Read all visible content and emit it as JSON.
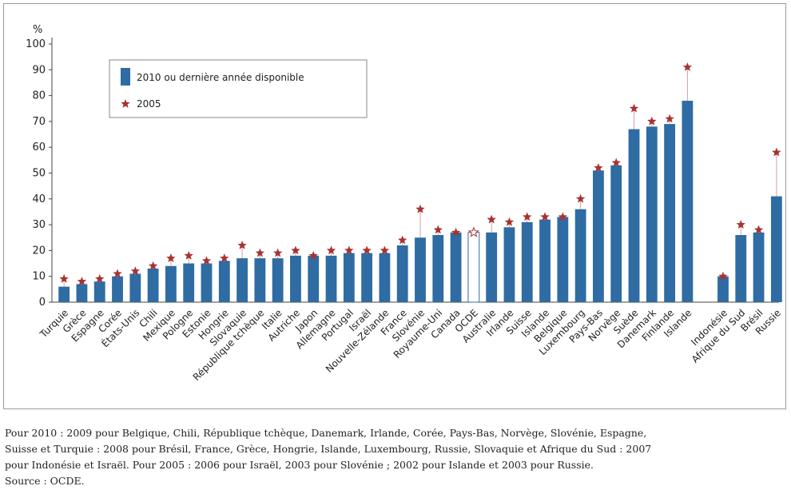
{
  "chart_data": {
    "type": "bar",
    "ylabel": "%",
    "ylim": [
      0,
      100
    ],
    "yticks": [
      0,
      10,
      20,
      30,
      40,
      50,
      60,
      70,
      80,
      90,
      100
    ],
    "grid": false,
    "legend": {
      "placement": "top-left"
    },
    "categories": [
      "Turquie",
      "Grèce",
      "Espagne",
      "Corée",
      "États-Unis",
      "Chili",
      "Mexique",
      "Pologne",
      "Estonie",
      "Hongrie",
      "Slovaquie",
      "République tchèque",
      "Italie",
      "Autriche",
      "Japon",
      "Allemagne",
      "Portugal",
      "Israël",
      "Nouvelle-Zélande",
      "France",
      "Slovénie",
      "Royaume-Uni",
      "Canada",
      "OCDE",
      "Australie",
      "Irlande",
      "Suisse",
      "Islande",
      "Belgique",
      "Luxembourg",
      "Pays-Bas",
      "Norvège",
      "Suède",
      "Danemark",
      "Finlande",
      "Islande",
      "",
      "Indonésie",
      "Afrique du Sud",
      "Brésil",
      "Russie"
    ],
    "series": [
      {
        "name": "2010 ou dernière année disponible",
        "marker": "bar",
        "color": "#2e6ca3",
        "values": [
          6,
          7,
          8,
          10,
          11,
          13,
          14,
          15,
          15,
          16,
          17,
          17,
          17,
          18,
          18,
          18,
          19,
          19,
          19,
          22,
          25,
          26,
          27,
          27,
          27,
          29,
          31,
          32,
          33,
          36,
          51,
          53,
          67,
          68,
          69,
          78,
          null,
          10,
          26,
          27,
          41
        ]
      },
      {
        "name": "2005",
        "marker": "star",
        "color": "#a83232",
        "values": [
          9,
          8,
          9,
          11,
          12,
          14,
          17,
          18,
          16,
          17,
          22,
          19,
          19,
          20,
          18,
          20,
          20,
          20,
          20,
          24,
          36,
          28,
          27,
          27,
          32,
          31,
          33,
          33,
          33,
          40,
          52,
          54,
          75,
          70,
          71,
          91,
          null,
          10,
          30,
          28,
          58
        ]
      }
    ],
    "highlight": {
      "category": "OCDE",
      "style": "outline"
    },
    "colors": {
      "bar": "#2e6ca3",
      "marker": "#a83232",
      "connector": "#d4a0a0",
      "axis": "#444444"
    }
  },
  "notes": {
    "line1": "Pour 2010 : 2009 pour Belgique, Chili, République tchèque, Danemark, Irlande, Corée, Pays-Bas, Norvège, Slovénie, Espagne,",
    "line2": "Suisse et Turquie : 2008 pour Brésil, France, Grèce, Hongrie, Islande, Luxembourg, Russie, Slovaquie et Afrique du Sud : 2007",
    "line3": "pour Indonésie et Israël. Pour 2005 : 2006 pour Israël, 2003 pour Slovénie ; 2002 pour Islande et 2003 pour Russie.",
    "source": "Source : OCDE."
  }
}
